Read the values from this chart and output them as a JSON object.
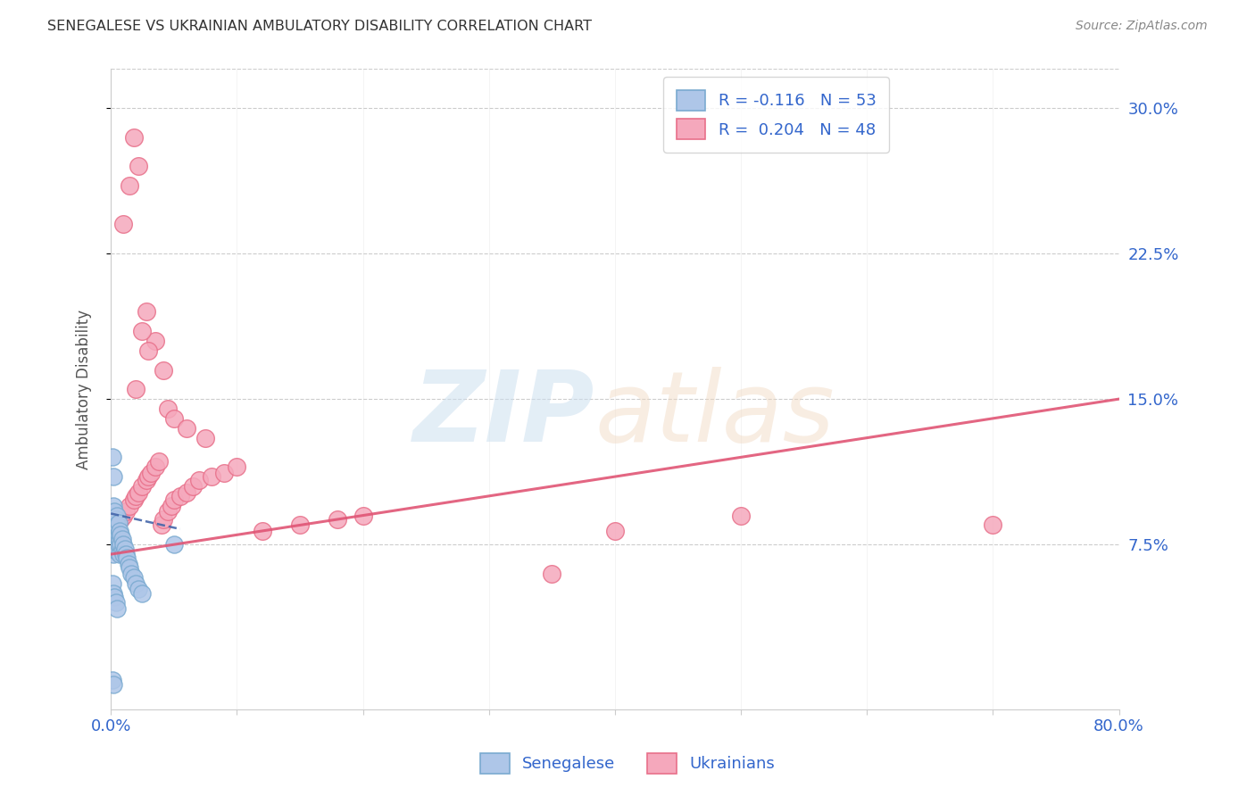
{
  "title": "SENEGALESE VS UKRAINIAN AMBULATORY DISABILITY CORRELATION CHART",
  "source": "Source: ZipAtlas.com",
  "ylabel": "Ambulatory Disability",
  "xlim": [
    0.0,
    0.8
  ],
  "ylim": [
    -0.01,
    0.32
  ],
  "xticks": [
    0.0,
    0.1,
    0.2,
    0.3,
    0.4,
    0.5,
    0.6,
    0.7,
    0.8
  ],
  "xticklabels": [
    "0.0%",
    "",
    "",
    "",
    "",
    "",
    "",
    "",
    "80.0%"
  ],
  "ytick_positions": [
    0.075,
    0.15,
    0.225,
    0.3
  ],
  "ytick_labels": [
    "7.5%",
    "15.0%",
    "22.5%",
    "30.0%"
  ],
  "grid_color": "#cccccc",
  "background_color": "#ffffff",
  "senegalese_color": "#aec6e8",
  "ukrainian_color": "#f5a8bc",
  "senegalese_edge_color": "#7aaad0",
  "ukrainian_edge_color": "#e8708a",
  "senegalese_line_color": "#4466aa",
  "ukrainian_line_color": "#e05575",
  "legend_senegalese_label": "R = -0.116   N = 53",
  "legend_ukrainian_label": "R =  0.204   N = 48",
  "legend_text_color": "#3366cc",
  "senegalese_x": [
    0.001,
    0.001,
    0.001,
    0.001,
    0.002,
    0.002,
    0.002,
    0.002,
    0.002,
    0.003,
    0.003,
    0.003,
    0.003,
    0.004,
    0.004,
    0.004,
    0.004,
    0.005,
    0.005,
    0.005,
    0.005,
    0.006,
    0.006,
    0.006,
    0.007,
    0.007,
    0.007,
    0.008,
    0.008,
    0.009,
    0.009,
    0.01,
    0.01,
    0.011,
    0.012,
    0.013,
    0.014,
    0.015,
    0.016,
    0.018,
    0.02,
    0.022,
    0.025,
    0.001,
    0.002,
    0.003,
    0.004,
    0.005,
    0.001,
    0.002,
    0.001,
    0.002,
    0.05
  ],
  "senegalese_y": [
    0.09,
    0.085,
    0.08,
    0.075,
    0.095,
    0.088,
    0.082,
    0.077,
    0.07,
    0.092,
    0.086,
    0.08,
    0.074,
    0.088,
    0.083,
    0.078,
    0.072,
    0.09,
    0.085,
    0.078,
    0.072,
    0.086,
    0.08,
    0.075,
    0.082,
    0.077,
    0.07,
    0.08,
    0.075,
    0.078,
    0.072,
    0.075,
    0.07,
    0.073,
    0.07,
    0.068,
    0.065,
    0.063,
    0.06,
    0.058,
    0.055,
    0.052,
    0.05,
    0.055,
    0.05,
    0.048,
    0.045,
    0.042,
    0.12,
    0.11,
    0.005,
    0.003,
    0.075
  ],
  "ukrainian_x": [
    0.005,
    0.008,
    0.01,
    0.012,
    0.015,
    0.018,
    0.02,
    0.022,
    0.025,
    0.028,
    0.03,
    0.032,
    0.035,
    0.038,
    0.04,
    0.042,
    0.045,
    0.048,
    0.05,
    0.055,
    0.06,
    0.065,
    0.07,
    0.08,
    0.09,
    0.1,
    0.12,
    0.15,
    0.18,
    0.2,
    0.01,
    0.015,
    0.018,
    0.022,
    0.028,
    0.035,
    0.042,
    0.4,
    0.7,
    0.02,
    0.025,
    0.03,
    0.045,
    0.05,
    0.35,
    0.5,
    0.06,
    0.075
  ],
  "ukrainian_y": [
    0.082,
    0.088,
    0.09,
    0.092,
    0.095,
    0.098,
    0.1,
    0.102,
    0.105,
    0.108,
    0.11,
    0.112,
    0.115,
    0.118,
    0.085,
    0.088,
    0.092,
    0.095,
    0.098,
    0.1,
    0.102,
    0.105,
    0.108,
    0.11,
    0.112,
    0.115,
    0.082,
    0.085,
    0.088,
    0.09,
    0.24,
    0.26,
    0.285,
    0.27,
    0.195,
    0.18,
    0.165,
    0.082,
    0.085,
    0.155,
    0.185,
    0.175,
    0.145,
    0.14,
    0.06,
    0.09,
    0.135,
    0.13
  ],
  "sen_line_x": [
    0.0,
    0.055
  ],
  "sen_line_y": [
    0.091,
    0.083
  ],
  "ukr_line_x": [
    0.0,
    0.8
  ],
  "ukr_line_y": [
    0.07,
    0.15
  ]
}
